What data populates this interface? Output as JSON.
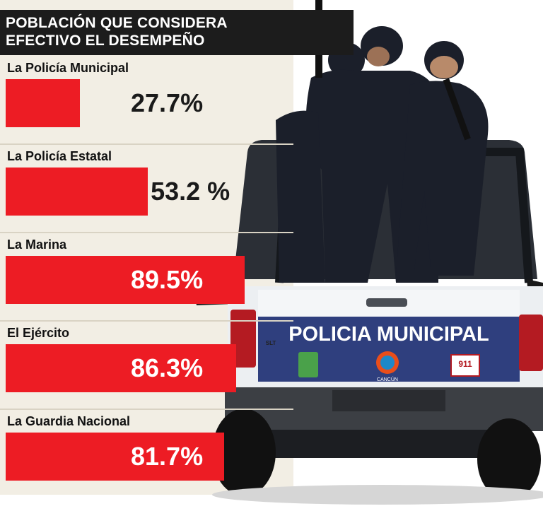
{
  "header": {
    "title_line1": "POBLACIÓN QUE CONSIDERA",
    "title_line2": "EFECTIVO EL DESEMPEÑO"
  },
  "colors": {
    "bar": "#ed1c24",
    "title_bg": "#1c1c1c",
    "panel_bg": "#f2eee4"
  },
  "chart_data": {
    "type": "bar",
    "orientation": "horizontal",
    "title": "POBLACIÓN QUE CONSIDERA EFECTIVO EL DESEMPEÑO",
    "categories": [
      "La Policía Municipal",
      "La Policía Estatal",
      "La Marina",
      "El Ejército",
      "La Guardia Nacional"
    ],
    "values": [
      27.7,
      53.2,
      89.5,
      86.3,
      81.7
    ],
    "value_labels": [
      "27.7%",
      "53.2 %",
      "89.5%",
      "86.3%",
      "81.7%"
    ],
    "unit": "%",
    "xlim": [
      0,
      100
    ],
    "grid": false,
    "legend": "none"
  },
  "truck": {
    "side_text": "POLICIA MUNICIPAL",
    "logo_text": "CANCÚN",
    "emergency_number": "911",
    "model_badge": "SLT"
  }
}
